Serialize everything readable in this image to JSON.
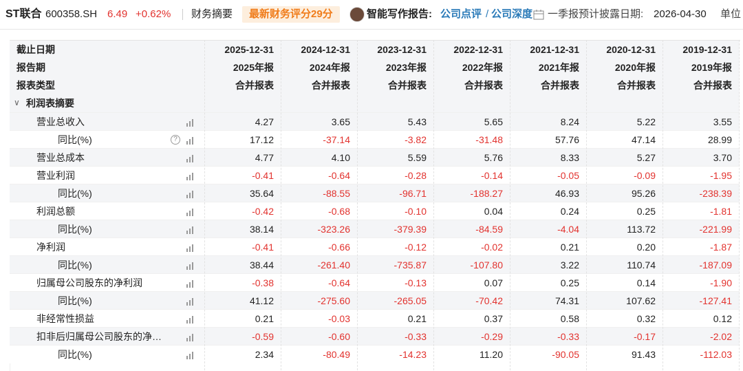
{
  "header": {
    "name": "ST联合",
    "code": "600358.SH",
    "price": "6.49",
    "change": "+0.62%",
    "tab": "财务摘要",
    "score_badge": "最新财务评分29分",
    "report_label": "智能写作报告:",
    "report_links": [
      "公司点评",
      "公司深度"
    ],
    "report_sep": "/",
    "disclosure_label": "一季报预计披露日期:",
    "disclosure_date": "2026-04-30",
    "unit_label": "单位"
  },
  "table": {
    "header_rows": [
      {
        "label": "截止日期",
        "cells": [
          "2025-12-31",
          "2024-12-31",
          "2023-12-31",
          "2022-12-31",
          "2021-12-31",
          "2020-12-31",
          "2019-12-31"
        ]
      },
      {
        "label": "报告期",
        "cells": [
          "2025年报",
          "2024年报",
          "2023年报",
          "2022年报",
          "2021年报",
          "2020年报",
          "2019年报"
        ]
      },
      {
        "label": "报表类型",
        "cells": [
          "合并报表",
          "合并报表",
          "合并报表",
          "合并报表",
          "合并报表",
          "合并报表",
          "合并报表"
        ]
      }
    ],
    "section": "利润表摘要",
    "rows": [
      {
        "label": "营业总收入",
        "values": [
          "4.27",
          "3.65",
          "5.43",
          "5.65",
          "8.24",
          "5.22",
          "3.55"
        ],
        "yoy": {
          "label": "同比(%)",
          "values": [
            "17.12",
            "-37.14",
            "-3.82",
            "-31.48",
            "57.76",
            "47.14",
            "28.99"
          ]
        }
      },
      {
        "label": "营业总成本",
        "values": [
          "4.77",
          "4.10",
          "5.59",
          "5.76",
          "8.33",
          "5.27",
          "3.70"
        ]
      },
      {
        "label": "营业利润",
        "values": [
          "-0.41",
          "-0.64",
          "-0.28",
          "-0.14",
          "-0.05",
          "-0.09",
          "-1.95"
        ],
        "yoy": {
          "label": "同比(%)",
          "values": [
            "35.64",
            "-88.55",
            "-96.71",
            "-188.27",
            "46.93",
            "95.26",
            "-238.39"
          ]
        }
      },
      {
        "label": "利润总额",
        "values": [
          "-0.42",
          "-0.68",
          "-0.10",
          "0.04",
          "0.24",
          "0.25",
          "-1.81"
        ],
        "yoy": {
          "label": "同比(%)",
          "values": [
            "38.14",
            "-323.26",
            "-379.39",
            "-84.59",
            "-4.04",
            "113.72",
            "-221.99"
          ]
        }
      },
      {
        "label": "净利润",
        "values": [
          "-0.41",
          "-0.66",
          "-0.12",
          "-0.02",
          "0.21",
          "0.20",
          "-1.87"
        ],
        "yoy": {
          "label": "同比(%)",
          "values": [
            "38.44",
            "-261.40",
            "-735.87",
            "-107.80",
            "3.22",
            "110.74",
            "-187.09"
          ]
        }
      },
      {
        "label": "归属母公司股东的净利润",
        "values": [
          "-0.38",
          "-0.64",
          "-0.13",
          "0.07",
          "0.25",
          "0.14",
          "-1.90"
        ],
        "yoy": {
          "label": "同比(%)",
          "values": [
            "41.12",
            "-275.60",
            "-265.05",
            "-70.42",
            "74.31",
            "107.62",
            "-127.41"
          ]
        }
      },
      {
        "label": "非经常性损益",
        "values": [
          "0.21",
          "-0.03",
          "0.21",
          "0.37",
          "0.58",
          "0.32",
          "0.12"
        ]
      },
      {
        "label": "扣非后归属母公司股东的净…",
        "values": [
          "-0.59",
          "-0.60",
          "-0.33",
          "-0.29",
          "-0.33",
          "-0.17",
          "-2.02"
        ],
        "yoy": {
          "label": "同比(%)",
          "values": [
            "2.34",
            "-80.49",
            "-14.23",
            "11.20",
            "-90.05",
            "91.43",
            "-112.03"
          ]
        }
      }
    ]
  }
}
